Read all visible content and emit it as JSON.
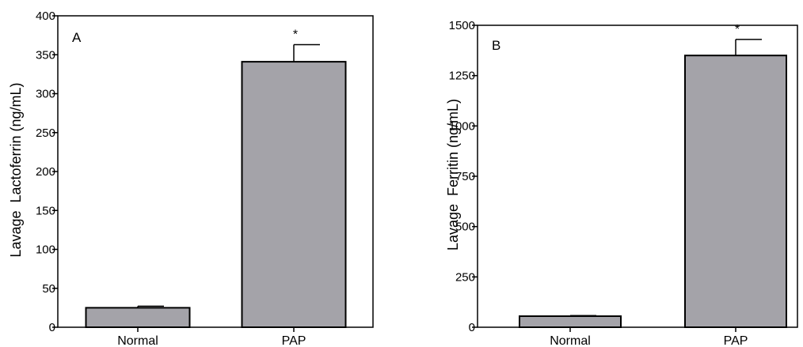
{
  "colors": {
    "bar_fill": "#a4a3a9",
    "stroke": "#000000",
    "background": "#ffffff"
  },
  "chart_data": [
    {
      "type": "bar",
      "panel_label": "A",
      "categories": [
        "Normal",
        "PAP"
      ],
      "values": [
        25,
        341
      ],
      "errors": [
        2,
        22
      ],
      "significance": [
        "",
        "*"
      ],
      "title": "",
      "xlabel": "",
      "ylabel": "Lavage  Lactoferrin (ng/mL)",
      "ylim": [
        0,
        400
      ],
      "yticks": [
        0,
        50,
        100,
        150,
        200,
        250,
        300,
        350,
        400
      ],
      "grid": false,
      "legend": "none"
    },
    {
      "type": "bar",
      "panel_label": "B",
      "categories": [
        "Normal",
        "PAP"
      ],
      "values": [
        55,
        1350
      ],
      "errors": [
        3,
        80
      ],
      "significance": [
        "",
        "*"
      ],
      "title": "",
      "xlabel": "",
      "ylabel": "Lavage  Ferritin (ng/mL)",
      "ylim": [
        0,
        1500
      ],
      "yticks": [
        0,
        250,
        500,
        750,
        1000,
        1250,
        1500
      ],
      "grid": false,
      "legend": "none"
    }
  ]
}
